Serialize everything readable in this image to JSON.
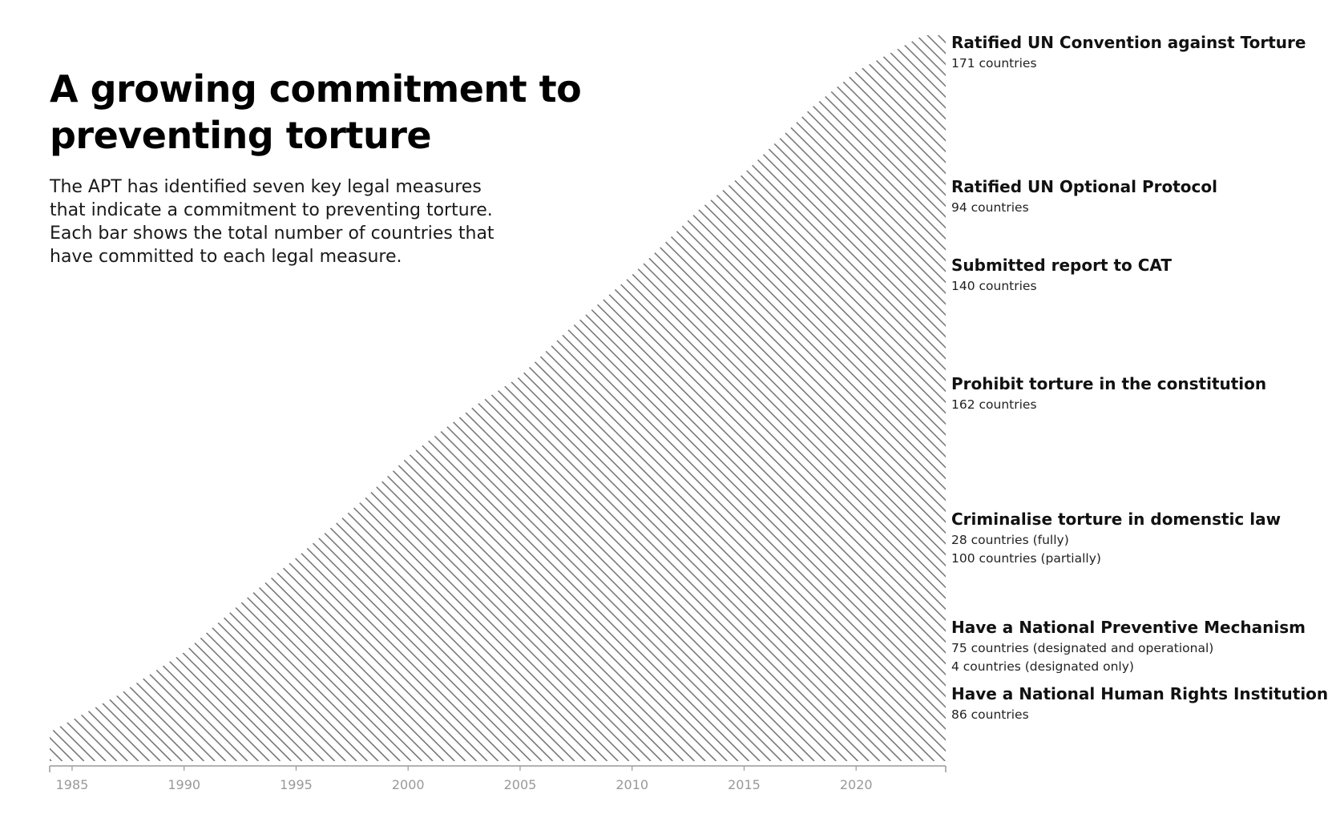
{
  "page": {
    "title": "A growing commitment to preventing torture",
    "description": "The APT has identified seven key legal measures that indicate a commitment to preventing torture. Each bar shows the total number of countries that have committed to each legal measure."
  },
  "chart_data": {
    "type": "area",
    "x_range": [
      1984,
      2024
    ],
    "x_ticks": [
      1985,
      1990,
      1995,
      2000,
      2005,
      2010,
      2015,
      2020
    ],
    "grid": false,
    "fill": "diagonal hatch",
    "line_color": "#7a7a7a",
    "axis_color": "#999999",
    "envelope": [
      {
        "x": 1984,
        "y": 0.04
      },
      {
        "x": 1987,
        "y": 0.09
      },
      {
        "x": 1990,
        "y": 0.15
      },
      {
        "x": 1993,
        "y": 0.23
      },
      {
        "x": 1995,
        "y": 0.28
      },
      {
        "x": 1998,
        "y": 0.36
      },
      {
        "x": 2000,
        "y": 0.42
      },
      {
        "x": 2003,
        "y": 0.49
      },
      {
        "x": 2005,
        "y": 0.53
      },
      {
        "x": 2007,
        "y": 0.59
      },
      {
        "x": 2010,
        "y": 0.67
      },
      {
        "x": 2013,
        "y": 0.76
      },
      {
        "x": 2015,
        "y": 0.81
      },
      {
        "x": 2018,
        "y": 0.9
      },
      {
        "x": 2020,
        "y": 0.95
      },
      {
        "x": 2023,
        "y": 1.0
      },
      {
        "x": 2024,
        "y": 1.0
      }
    ],
    "annotations": [
      {
        "label": "Ratified UN Convention against Torture",
        "lines": [
          "171 countries"
        ]
      },
      {
        "label": "Ratified UN Optional Protocol",
        "lines": [
          "94 countries"
        ]
      },
      {
        "label": "Submitted report to CAT",
        "lines": [
          "140 countries"
        ]
      },
      {
        "label": "Prohibit torture in the constitution",
        "lines": [
          "162 countries"
        ]
      },
      {
        "label": "Criminalise torture in domenstic law",
        "lines": [
          "28 countries (fully)",
          "100 countries (partially)"
        ]
      },
      {
        "label": "Have a National Preventive Mechanism",
        "lines": [
          "75 countries (designated and operational)",
          "4 countries (designated only)"
        ]
      },
      {
        "label": "Have a National Human Rights Institution",
        "lines": [
          "86 countries"
        ]
      }
    ]
  }
}
